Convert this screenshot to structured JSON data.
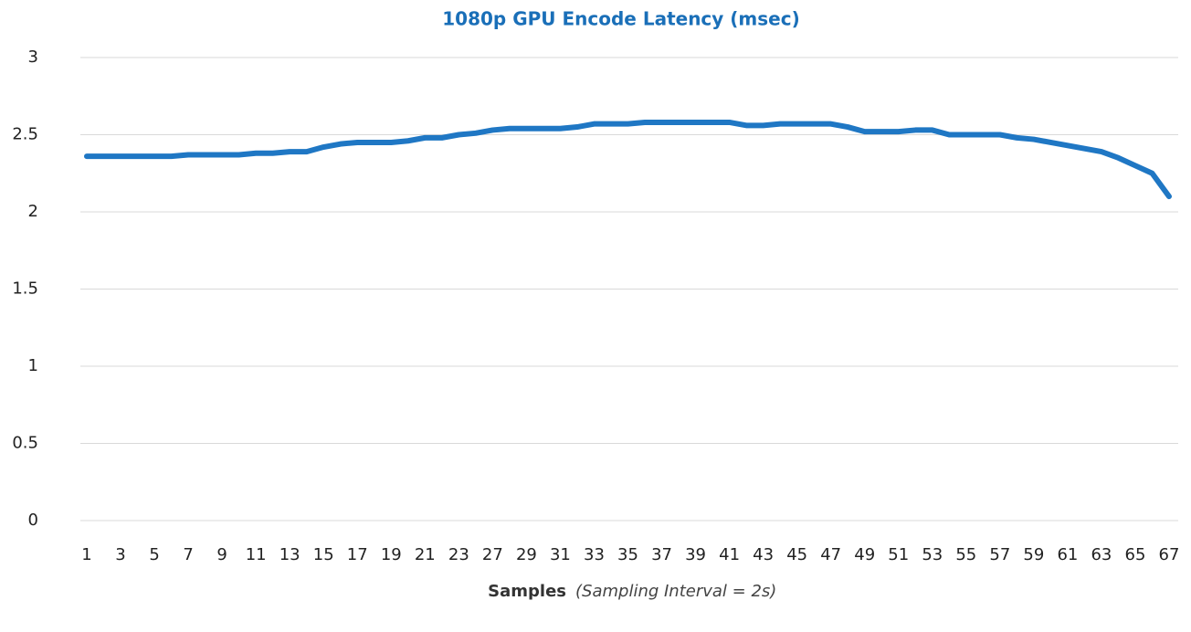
{
  "chart_data": {
    "type": "line",
    "title": "1080p GPU Encode Latency (msec)",
    "x_label": "Samples",
    "x_label_note": "(Sampling Interval = 2s)",
    "categories": [
      "1",
      null,
      "3",
      null,
      "5",
      null,
      "7",
      null,
      "9",
      null,
      "11",
      null,
      "13",
      null,
      "15",
      null,
      "17",
      null,
      "19",
      null,
      "21",
      null,
      "23",
      null,
      "27",
      null,
      "29",
      null,
      "31",
      null,
      "33",
      null,
      "35",
      null,
      "37",
      null,
      "39",
      null,
      "41",
      null,
      "43",
      null,
      "45",
      null,
      "47",
      null,
      "49",
      null,
      "51",
      null,
      "53",
      null,
      "55",
      null,
      "57",
      null,
      "59",
      null,
      "61",
      null,
      "63",
      null,
      "65",
      null,
      "67"
    ],
    "series": [
      {
        "name": "1080p GPU Encode Latency (msec)",
        "color": "#1f77c4",
        "values": [
          2.36,
          2.36,
          2.36,
          2.36,
          2.36,
          2.36,
          2.37,
          2.37,
          2.37,
          2.37,
          2.38,
          2.38,
          2.39,
          2.39,
          2.42,
          2.44,
          2.45,
          2.45,
          2.45,
          2.46,
          2.48,
          2.48,
          2.5,
          2.51,
          2.53,
          2.54,
          2.54,
          2.54,
          2.54,
          2.55,
          2.57,
          2.57,
          2.57,
          2.58,
          2.58,
          2.58,
          2.58,
          2.58,
          2.58,
          2.56,
          2.56,
          2.57,
          2.57,
          2.57,
          2.57,
          2.55,
          2.52,
          2.52,
          2.52,
          2.53,
          2.53,
          2.5,
          2.5,
          2.5,
          2.5,
          2.48,
          2.47,
          2.45,
          2.43,
          2.41,
          2.39,
          2.35,
          2.3,
          2.25,
          2.1
        ]
      }
    ],
    "ylim": [
      0,
      3
    ],
    "yticks": [
      0,
      0.5,
      1,
      1.5,
      2,
      2.5,
      3
    ],
    "grid": true
  }
}
